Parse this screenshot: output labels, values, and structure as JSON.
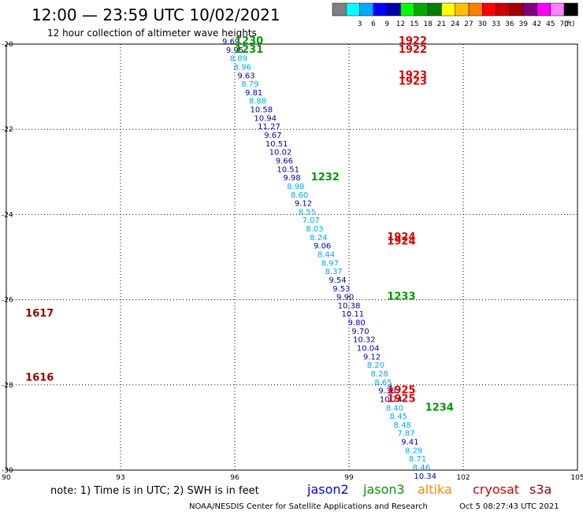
{
  "header": {
    "title": "12:00 — 23:59 UTC 10/02/2021",
    "subtitle": "12 hour collection of altimeter wave heights"
  },
  "color_scale": {
    "colors": [
      "#808080",
      "#00ffff",
      "#00aaff",
      "#0000ff",
      "#0000aa",
      "#00ff00",
      "#00aa00",
      "#008000",
      "#ffff00",
      "#ffbf00",
      "#ff8000",
      "#ff0000",
      "#cc0000",
      "#a00000",
      "#800080",
      "#ff00ff",
      "#ff80ff",
      "#000000"
    ],
    "labels": [
      "3",
      "6",
      "9",
      "12",
      "15",
      "18",
      "21",
      "24",
      "27",
      "30",
      "33",
      "36",
      "39",
      "42",
      "45",
      "70"
    ],
    "unit": "(ft)"
  },
  "footer": {
    "note": "note:  1) Time is in UTC;  2) SWH is in feet",
    "credit": "NOAA/NESDIS Center for Satellite Applications and Research",
    "timestamp": "Oct  5 08:27:43 UTC 2021"
  },
  "legend": [
    {
      "name": "jason2",
      "color": "#0000ee"
    },
    {
      "name": "jason3",
      "color": "#009900"
    },
    {
      "name": "altika",
      "color": "#ff8800"
    },
    {
      "name": "cryosat",
      "color": "#dd0000"
    },
    {
      "name": "s3a",
      "color": "#990000"
    }
  ],
  "chart_data": {
    "type": "scatter",
    "title": "12 hour collection of altimeter wave heights",
    "xlim": [
      90,
      105
    ],
    "ylim": [
      -30,
      -20
    ],
    "x_ticks": [
      "90",
      "93",
      "96",
      "99",
      "102",
      "105"
    ],
    "y_ticks": [
      "-20",
      "-22",
      "-24",
      "-26",
      "-28",
      "-30"
    ],
    "grid": true,
    "units": "feet",
    "value_colors": {
      "low": "#00aaee",
      "mid": "#0000aa"
    },
    "points": [
      {
        "lon": 95.9,
        "lat": -20.0,
        "v": "9.69"
      },
      {
        "lon": 96.0,
        "lat": -20.2,
        "v": "9.95"
      },
      {
        "lon": 96.1,
        "lat": -20.4,
        "v": "8.89"
      },
      {
        "lon": 96.2,
        "lat": -20.6,
        "v": "8.96"
      },
      {
        "lon": 96.3,
        "lat": -20.8,
        "v": "9.63"
      },
      {
        "lon": 96.4,
        "lat": -21.0,
        "v": "8.79"
      },
      {
        "lon": 96.5,
        "lat": -21.2,
        "v": "9.81"
      },
      {
        "lon": 96.6,
        "lat": -21.4,
        "v": "8.88"
      },
      {
        "lon": 96.7,
        "lat": -21.6,
        "v": "10.58"
      },
      {
        "lon": 96.8,
        "lat": -21.8,
        "v": "10.94"
      },
      {
        "lon": 96.9,
        "lat": -22.0,
        "v": "11.27"
      },
      {
        "lon": 97.0,
        "lat": -22.2,
        "v": "9.67"
      },
      {
        "lon": 97.1,
        "lat": -22.4,
        "v": "10.51"
      },
      {
        "lon": 97.2,
        "lat": -22.6,
        "v": "10.02"
      },
      {
        "lon": 97.3,
        "lat": -22.8,
        "v": "9.66"
      },
      {
        "lon": 97.4,
        "lat": -23.0,
        "v": "10.51"
      },
      {
        "lon": 97.5,
        "lat": -23.2,
        "v": "9.98"
      },
      {
        "lon": 97.6,
        "lat": -23.4,
        "v": "8.98"
      },
      {
        "lon": 97.7,
        "lat": -23.6,
        "v": "8.60"
      },
      {
        "lon": 97.8,
        "lat": -23.8,
        "v": "9.12"
      },
      {
        "lon": 97.9,
        "lat": -24.0,
        "v": "8.55"
      },
      {
        "lon": 98.0,
        "lat": -24.2,
        "v": "7.07"
      },
      {
        "lon": 98.1,
        "lat": -24.4,
        "v": "8.03"
      },
      {
        "lon": 98.2,
        "lat": -24.6,
        "v": "8.24"
      },
      {
        "lon": 98.3,
        "lat": -24.8,
        "v": "9.06"
      },
      {
        "lon": 98.4,
        "lat": -25.0,
        "v": "8.44"
      },
      {
        "lon": 98.5,
        "lat": -25.2,
        "v": "8.97"
      },
      {
        "lon": 98.6,
        "lat": -25.4,
        "v": "8.37"
      },
      {
        "lon": 98.7,
        "lat": -25.6,
        "v": "9.54"
      },
      {
        "lon": 98.8,
        "lat": -25.8,
        "v": "9.53"
      },
      {
        "lon": 98.9,
        "lat": -26.0,
        "v": "9.90"
      },
      {
        "lon": 99.0,
        "lat": -26.2,
        "v": "10.38"
      },
      {
        "lon": 99.1,
        "lat": -26.4,
        "v": "10.11"
      },
      {
        "lon": 99.2,
        "lat": -26.6,
        "v": "9.80"
      },
      {
        "lon": 99.3,
        "lat": -26.8,
        "v": "9.70"
      },
      {
        "lon": 99.4,
        "lat": -27.0,
        "v": "10.32"
      },
      {
        "lon": 99.5,
        "lat": -27.2,
        "v": "10.04"
      },
      {
        "lon": 99.6,
        "lat": -27.4,
        "v": "9.12"
      },
      {
        "lon": 99.7,
        "lat": -27.6,
        "v": "8.20"
      },
      {
        "lon": 99.8,
        "lat": -27.8,
        "v": "8.28"
      },
      {
        "lon": 99.9,
        "lat": -28.0,
        "v": "8.65"
      },
      {
        "lon": 100.0,
        "lat": -28.2,
        "v": "9.36"
      },
      {
        "lon": 100.1,
        "lat": -28.4,
        "v": "10.74"
      },
      {
        "lon": 100.2,
        "lat": -28.6,
        "v": "8.40"
      },
      {
        "lon": 100.3,
        "lat": -28.8,
        "v": "8.45"
      },
      {
        "lon": 100.4,
        "lat": -29.0,
        "v": "8.48"
      },
      {
        "lon": 100.5,
        "lat": -29.2,
        "v": "7.87"
      },
      {
        "lon": 100.6,
        "lat": -29.4,
        "v": "9.41"
      },
      {
        "lon": 100.7,
        "lat": -29.6,
        "v": "8.29"
      },
      {
        "lon": 100.8,
        "lat": -29.8,
        "v": "8.71"
      },
      {
        "lon": 100.9,
        "lat": -30.0,
        "v": "8.46"
      },
      {
        "lon": 101.0,
        "lat": -30.2,
        "v": "10.34"
      }
    ],
    "track_labels": [
      {
        "lon": 96.0,
        "lat": -20.0,
        "text": "1230",
        "sat": "jason3"
      },
      {
        "lon": 96.0,
        "lat": -20.2,
        "text": "1231",
        "sat": "jason3"
      },
      {
        "lon": 98.0,
        "lat": -23.2,
        "text": "1232",
        "sat": "jason3"
      },
      {
        "lon": 100.0,
        "lat": -26.0,
        "text": "1233",
        "sat": "jason3"
      },
      {
        "lon": 101.0,
        "lat": -28.6,
        "text": "1234",
        "sat": "jason3"
      },
      {
        "lon": 100.3,
        "lat": -20.0,
        "text": "1922",
        "sat": "cryosat"
      },
      {
        "lon": 100.3,
        "lat": -20.2,
        "text": "1922",
        "sat": "cryosat"
      },
      {
        "lon": 100.3,
        "lat": -20.8,
        "text": "1923",
        "sat": "cryosat"
      },
      {
        "lon": 100.3,
        "lat": -20.95,
        "text": "1923",
        "sat": "cryosat"
      },
      {
        "lon": 100.0,
        "lat": -24.6,
        "text": "1924",
        "sat": "cryosat"
      },
      {
        "lon": 100.0,
        "lat": -24.7,
        "text": "1924",
        "sat": "cryosat"
      },
      {
        "lon": 100.0,
        "lat": -28.2,
        "text": "1925",
        "sat": "cryosat"
      },
      {
        "lon": 100.0,
        "lat": -28.4,
        "text": "1925",
        "sat": "cryosat"
      },
      {
        "lon": 90.5,
        "lat": -26.4,
        "text": "1617",
        "sat": "s3a"
      },
      {
        "lon": 90.5,
        "lat": -27.9,
        "text": "1616",
        "sat": "s3a"
      }
    ]
  }
}
